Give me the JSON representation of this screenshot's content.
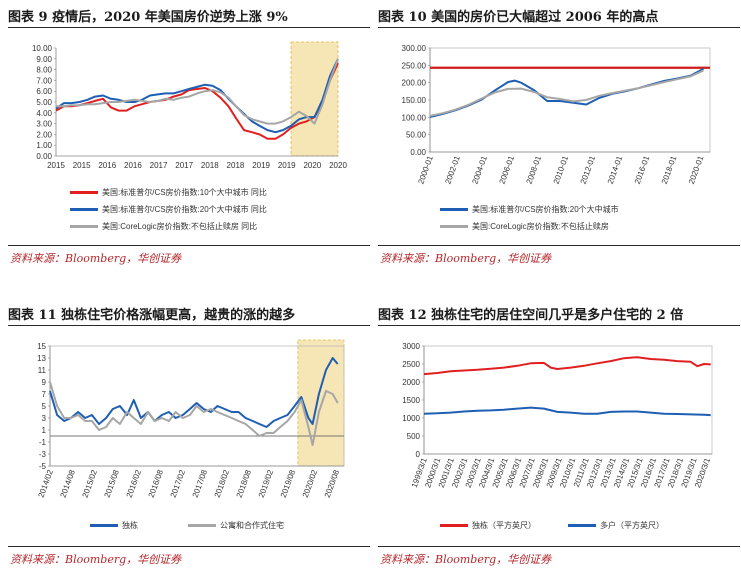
{
  "source_label": "资料来源：Bloomberg，华创证券",
  "chart_data": [
    {
      "id": "c9",
      "type": "line",
      "title": "图表 9   疫情后，2020 年美国房价逆势上涨 9%",
      "source": "资料来源：Bloomberg，华创证券",
      "ylim": [
        0,
        10
      ],
      "yticks": [
        "0.00",
        "1.00",
        "2.00",
        "3.00",
        "4.00",
        "5.00",
        "6.00",
        "7.00",
        "8.00",
        "9.00",
        "10.00"
      ],
      "xticks": [
        "2015",
        "2015",
        "2016",
        "2016",
        "2017",
        "2017",
        "2018",
        "2018",
        "2019",
        "2019",
        "2020",
        "2020"
      ],
      "xlim": [
        2015.0,
        2021.0
      ],
      "highlight": [
        2020.0,
        2021.0
      ],
      "grid": false,
      "series": [
        {
          "name": "美国:标准普尔/CS房价指数:10个大中城市  同比",
          "color": "#e02020",
          "x": [
            2015.0,
            2015.17,
            2015.33,
            2015.5,
            2015.67,
            2015.83,
            2016.0,
            2016.17,
            2016.33,
            2016.5,
            2016.67,
            2016.83,
            2017.0,
            2017.17,
            2017.33,
            2017.5,
            2017.67,
            2017.83,
            2018.0,
            2018.17,
            2018.33,
            2018.5,
            2018.67,
            2018.83,
            2019.0,
            2019.17,
            2019.33,
            2019.5,
            2019.67,
            2019.83,
            2020.0,
            2020.17,
            2020.33,
            2020.5,
            2020.67,
            2020.83,
            2021.0
          ],
          "y": [
            4.2,
            4.6,
            4.6,
            4.7,
            4.9,
            5.1,
            5.3,
            4.5,
            4.2,
            4.2,
            4.6,
            4.8,
            5.0,
            5.1,
            5.2,
            5.5,
            5.7,
            6.1,
            6.2,
            6.3,
            6.0,
            5.4,
            4.6,
            3.5,
            2.4,
            2.2,
            2.0,
            1.6,
            1.6,
            2.0,
            2.6,
            3.0,
            3.2,
            3.6,
            5.0,
            7.0,
            8.6
          ]
        },
        {
          "name": "美国:标准普尔/CS房价指数:20个大中城市  同比",
          "color": "#1f5fb3",
          "x": [
            2015.0,
            2015.17,
            2015.33,
            2015.5,
            2015.67,
            2015.83,
            2016.0,
            2016.17,
            2016.33,
            2016.5,
            2016.67,
            2016.83,
            2017.0,
            2017.17,
            2017.33,
            2017.5,
            2017.67,
            2017.83,
            2018.0,
            2018.17,
            2018.33,
            2018.5,
            2018.67,
            2018.83,
            2019.0,
            2019.17,
            2019.33,
            2019.5,
            2019.67,
            2019.83,
            2020.0,
            2020.17,
            2020.33,
            2020.5,
            2020.67,
            2020.83,
            2021.0
          ],
          "y": [
            4.4,
            4.9,
            4.9,
            5.0,
            5.2,
            5.5,
            5.6,
            5.3,
            5.2,
            5.0,
            5.0,
            5.2,
            5.6,
            5.7,
            5.8,
            5.8,
            6.0,
            6.2,
            6.4,
            6.6,
            6.5,
            6.1,
            5.3,
            4.6,
            3.9,
            3.2,
            2.8,
            2.4,
            2.2,
            2.4,
            2.8,
            3.4,
            3.6,
            3.6,
            5.2,
            7.4,
            9.0
          ]
        },
        {
          "name": "美国:CoreLogic房价指数:不包括止赎房  同比",
          "color": "#a6a6a6",
          "x": [
            2015.0,
            2015.17,
            2015.33,
            2015.5,
            2015.67,
            2015.83,
            2016.0,
            2016.17,
            2016.33,
            2016.5,
            2016.67,
            2016.83,
            2017.0,
            2017.17,
            2017.33,
            2017.5,
            2017.67,
            2017.83,
            2018.0,
            2018.17,
            2018.33,
            2018.5,
            2018.67,
            2018.83,
            2019.0,
            2019.17,
            2019.33,
            2019.5,
            2019.67,
            2019.83,
            2020.0,
            2020.17,
            2020.33,
            2020.5,
            2020.67,
            2020.83,
            2021.0
          ],
          "y": [
            4.6,
            4.6,
            4.7,
            4.7,
            4.8,
            4.8,
            4.9,
            5.0,
            5.0,
            5.1,
            5.2,
            5.1,
            5.0,
            5.1,
            5.3,
            5.2,
            5.4,
            5.5,
            5.8,
            6.0,
            6.1,
            5.9,
            5.4,
            4.6,
            3.8,
            3.4,
            3.2,
            3.0,
            3.0,
            3.2,
            3.6,
            4.1,
            3.7,
            3.0,
            4.8,
            7.0,
            9.0
          ]
        }
      ]
    },
    {
      "id": "c10",
      "type": "line",
      "title": "图表 10   美国的房价已大幅超过 2006 年的高点",
      "source": "资料来源：Bloomberg，华创证券",
      "ylim": [
        0,
        300
      ],
      "yticks": [
        "0.00",
        "50.00",
        "100.00",
        "150.00",
        "200.00",
        "250.00",
        "300.00"
      ],
      "xticks": [
        "2000-01",
        "2002-01",
        "2004-01",
        "2006-01",
        "2008-01",
        "2010-01",
        "2012-01",
        "2014-01",
        "2016-01",
        "2018-01",
        "2020-01"
      ],
      "xlim": [
        2000.0,
        2021.5
      ],
      "reference_line": 243,
      "grid": false,
      "series": [
        {
          "name": "美国:标准普尔/CS房价指数:20个大中城市",
          "color": "#1f5fb3",
          "x": [
            2000,
            2001,
            2002,
            2003,
            2004,
            2005,
            2006,
            2006.5,
            2007,
            2008,
            2009,
            2010,
            2011,
            2012,
            2013,
            2014,
            2015,
            2016,
            2017,
            2018,
            2019,
            2020,
            2021
          ],
          "y": [
            101,
            110,
            121,
            135,
            152,
            178,
            202,
            206,
            200,
            178,
            147,
            147,
            142,
            137,
            156,
            168,
            175,
            184,
            195,
            205,
            212,
            220,
            240
          ]
        },
        {
          "name": "美国:CoreLogic房价指数:不包括止赎房",
          "color": "#a6a6a6",
          "x": [
            2000,
            2001,
            2002,
            2003,
            2004,
            2005,
            2006,
            2007,
            2008,
            2009,
            2010,
            2011,
            2012,
            2013,
            2014,
            2015,
            2016,
            2017,
            2018,
            2019,
            2020,
            2021
          ],
          "y": [
            104,
            112,
            123,
            137,
            155,
            172,
            182,
            183,
            173,
            158,
            153,
            146,
            150,
            162,
            170,
            177,
            184,
            193,
            202,
            210,
            218,
            235
          ]
        }
      ]
    },
    {
      "id": "c11",
      "type": "line",
      "title": "图表 11   独栋住宅价格涨幅更高，越贵的涨的越多",
      "source": "资料来源：Bloomberg，华创证券",
      "ylim": [
        -5,
        15
      ],
      "yticks": [
        "-5",
        "-3",
        "-1",
        "1",
        "3",
        "5",
        "7",
        "9",
        "11",
        "13",
        "15"
      ],
      "xticks": [
        "2014/02",
        "2014/08",
        "2015/02",
        "2015/08",
        "2016/02",
        "2016/08",
        "2017/02",
        "2017/08",
        "2018/02",
        "2018/08",
        "2019/02",
        "2019/08",
        "2020/02",
        "2020/08"
      ],
      "xlim": [
        2014.08,
        2021.1
      ],
      "highlight": [
        2020.0,
        2021.1
      ],
      "grid": false,
      "series": [
        {
          "name": "独栋",
          "color": "#1f5fb3",
          "x": [
            2014.08,
            2014.25,
            2014.42,
            2014.58,
            2014.75,
            2014.92,
            2015.08,
            2015.25,
            2015.42,
            2015.58,
            2015.75,
            2015.92,
            2016.08,
            2016.25,
            2016.42,
            2016.58,
            2016.75,
            2016.92,
            2017.08,
            2017.25,
            2017.42,
            2017.58,
            2017.75,
            2017.92,
            2018.08,
            2018.25,
            2018.42,
            2018.58,
            2018.75,
            2018.92,
            2019.08,
            2019.25,
            2019.42,
            2019.58,
            2019.75,
            2019.92,
            2020.08,
            2020.25,
            2020.35,
            2020.5,
            2020.67,
            2020.83,
            2020.95
          ],
          "y": [
            7.5,
            3.5,
            2.5,
            3.0,
            4.0,
            3.0,
            3.5,
            2.0,
            3.0,
            4.5,
            5.0,
            3.5,
            6.0,
            3.0,
            4.0,
            2.5,
            3.5,
            4.0,
            3.0,
            3.5,
            4.5,
            5.5,
            4.5,
            4.0,
            5.0,
            4.5,
            4.0,
            4.0,
            3.0,
            2.5,
            2.0,
            1.5,
            2.5,
            3.0,
            3.5,
            5.0,
            6.5,
            3.0,
            2.0,
            7.0,
            11.0,
            13.0,
            12.0
          ]
        },
        {
          "name": "公寓和合作式住宅",
          "color": "#a6a6a6",
          "x": [
            2014.08,
            2014.25,
            2014.42,
            2014.58,
            2014.75,
            2014.92,
            2015.08,
            2015.25,
            2015.42,
            2015.58,
            2015.75,
            2015.92,
            2016.08,
            2016.25,
            2016.42,
            2016.58,
            2016.75,
            2016.92,
            2017.08,
            2017.25,
            2017.42,
            2017.58,
            2017.75,
            2017.92,
            2018.08,
            2018.25,
            2018.42,
            2018.58,
            2018.75,
            2018.92,
            2019.08,
            2019.25,
            2019.42,
            2019.58,
            2019.75,
            2019.92,
            2020.08,
            2020.25,
            2020.35,
            2020.5,
            2020.67,
            2020.83,
            2020.95
          ],
          "y": [
            9.0,
            5.0,
            3.0,
            3.0,
            3.5,
            2.5,
            2.5,
            1.0,
            1.5,
            3.0,
            2.0,
            4.0,
            3.0,
            2.0,
            4.0,
            2.5,
            3.0,
            2.5,
            4.0,
            3.0,
            3.5,
            5.0,
            4.0,
            4.5,
            4.0,
            3.5,
            3.0,
            2.5,
            2.0,
            1.0,
            0.0,
            0.5,
            0.5,
            1.5,
            2.5,
            4.0,
            6.0,
            1.5,
            -1.5,
            4.0,
            7.5,
            7.0,
            5.5
          ]
        }
      ]
    },
    {
      "id": "c12",
      "type": "line",
      "title": "图表 12   独栋住宅的居住空间几乎是多户住宅的 2 倍",
      "source": "资料来源：Bloomberg，华创证券",
      "ylim": [
        0,
        3000
      ],
      "yticks": [
        "0",
        "500",
        "1000",
        "1500",
        "2000",
        "2500",
        "3000"
      ],
      "xticks": [
        "1999/3/1",
        "2000/3/1",
        "2001/3/1",
        "2002/3/1",
        "2003/3/1",
        "2004/3/1",
        "2005/3/1",
        "2006/3/1",
        "2007/3/1",
        "2008/3/1",
        "2009/3/1",
        "2010/3/1",
        "2011/3/1",
        "2012/3/1",
        "2013/3/1",
        "2014/3/1",
        "2015/3/1",
        "2016/3/1",
        "2017/3/1",
        "2018/3/1",
        "2019/3/1",
        "2020/3/1"
      ],
      "xlim": [
        1999.0,
        2020.6
      ],
      "grid": false,
      "series": [
        {
          "name": "独栋（平方英尺）",
          "color": "#e02020",
          "x": [
            1999,
            2000,
            2001,
            2002,
            2003,
            2004,
            2005,
            2006,
            2007,
            2008,
            2008.5,
            2009,
            2010,
            2011,
            2012,
            2013,
            2014,
            2015,
            2016,
            2017,
            2018,
            2019,
            2019.5,
            2020,
            2020.5
          ],
          "y": [
            2220,
            2250,
            2300,
            2320,
            2340,
            2370,
            2400,
            2450,
            2520,
            2530,
            2400,
            2360,
            2400,
            2450,
            2520,
            2580,
            2660,
            2690,
            2640,
            2620,
            2580,
            2560,
            2440,
            2500,
            2490
          ]
        },
        {
          "name": "多户（平方英尺）",
          "color": "#1f5fb3",
          "x": [
            1999,
            2000,
            2001,
            2002,
            2003,
            2004,
            2005,
            2006,
            2007,
            2008,
            2009,
            2010,
            2011,
            2012,
            2013,
            2014,
            2015,
            2016,
            2017,
            2018,
            2019,
            2020,
            2020.5
          ],
          "y": [
            1120,
            1130,
            1150,
            1180,
            1200,
            1210,
            1230,
            1260,
            1290,
            1260,
            1170,
            1150,
            1120,
            1120,
            1170,
            1180,
            1180,
            1150,
            1120,
            1110,
            1100,
            1090,
            1080
          ]
        }
      ]
    }
  ]
}
